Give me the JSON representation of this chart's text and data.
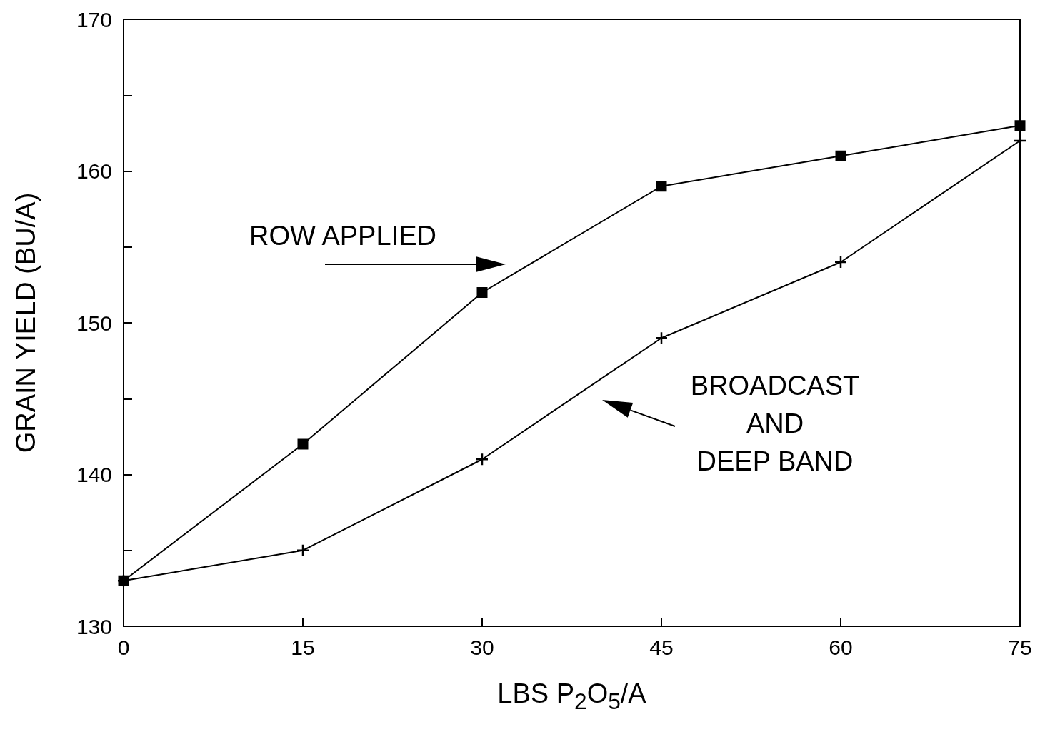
{
  "chart_data": {
    "type": "line",
    "xlabel": "LBS P$_{2}$O$_{5}$/A",
    "ylabel": "GRAIN YIELD (BU/A)",
    "x": [
      0,
      15,
      30,
      45,
      60,
      75
    ],
    "series": [
      {
        "color": "#000000",
        "marker": "square",
        "values": [
          133,
          142,
          152,
          159,
          161,
          163
        ]
      },
      {
        "color": "#000000",
        "marker": "cross",
        "values": [
          133,
          135,
          141,
          149,
          154,
          162
        ]
      }
    ],
    "annotations": [
      "ROW APPLIED",
      "BROADCAST\nAND\nDEEP BAND"
    ],
    "xlim": [
      0,
      75
    ],
    "xticks": [
      0,
      15,
      30,
      45,
      60,
      75
    ],
    "ylim": [
      130,
      170
    ],
    "yticks": [
      130,
      {
        "value": 135,
        "label": null
      },
      140,
      {
        "value": 145,
        "label": null
      },
      150,
      {
        "value": 155,
        "label": null
      },
      160,
      {
        "value": 165,
        "label": null
      },
      170
    ],
    "grid": false,
    "line_style": "solid"
  }
}
